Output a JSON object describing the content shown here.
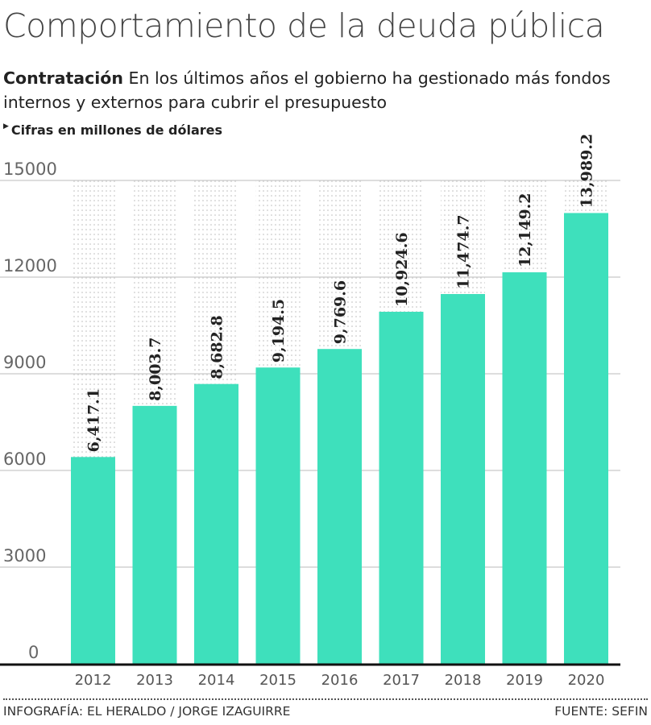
{
  "title": "Comportamiento de la deuda pública",
  "subtitle_bold": "Contratación",
  "subtitle": "En los últimos años el gobierno ha gestionado más fondos internos y externos para cubrir el presupuesto",
  "unit_note": "Cifras en millones de dólares",
  "footer_left": "INFOGRAFÍA: EL HERALDO / JORGE IZAGUIRRE",
  "footer_right": "FUENTE: SEFIN",
  "chart_data": {
    "type": "bar",
    "categories": [
      "2012",
      "2013",
      "2014",
      "2015",
      "2016",
      "2017",
      "2018",
      "2019",
      "2020"
    ],
    "values": [
      6417.1,
      8003.7,
      8682.8,
      9194.5,
      9769.6,
      10924.6,
      11474.7,
      12149.2,
      13989.2
    ],
    "data_labels": [
      "6,417.1",
      "8,003.7",
      "8,682.8",
      "9,194.5",
      "9,769.6",
      "10,924.6",
      "11,474.7",
      "12,149.2",
      "13,989.2"
    ],
    "yticks": [
      0,
      3000,
      6000,
      9000,
      12000,
      15000
    ],
    "ylim": [
      0,
      15000
    ],
    "grid": true,
    "bar_color": "#3ee0bc"
  }
}
